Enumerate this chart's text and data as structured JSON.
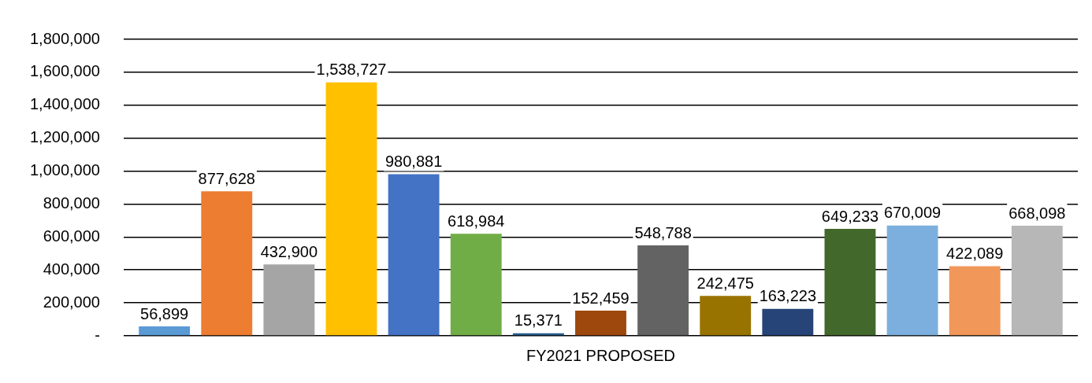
{
  "chart_data": {
    "type": "bar",
    "categories": [
      "FY2021 PROPOSED"
    ],
    "series": [
      {
        "color": "#5b9bd5",
        "values": [
          56899
        ],
        "value_labels": [
          "56,899"
        ]
      },
      {
        "color": "#ed7d31",
        "values": [
          877628
        ],
        "value_labels": [
          "877,628"
        ]
      },
      {
        "color": "#a5a5a5",
        "values": [
          432900
        ],
        "value_labels": [
          "432,900"
        ]
      },
      {
        "color": "#ffc000",
        "values": [
          1538727
        ],
        "value_labels": [
          "1,538,727"
        ]
      },
      {
        "color": "#4472c4",
        "values": [
          980881
        ],
        "value_labels": [
          "980,881"
        ]
      },
      {
        "color": "#70ad47",
        "values": [
          618984
        ],
        "value_labels": [
          "618,984"
        ]
      },
      {
        "color": "#255e91",
        "values": [
          15371
        ],
        "value_labels": [
          "15,371"
        ]
      },
      {
        "color": "#9e480e",
        "values": [
          152459
        ],
        "value_labels": [
          "152,459"
        ]
      },
      {
        "color": "#636363",
        "values": [
          548788
        ],
        "value_labels": [
          "548,788"
        ]
      },
      {
        "color": "#997300",
        "values": [
          242475
        ],
        "value_labels": [
          "242,475"
        ]
      },
      {
        "color": "#264478",
        "values": [
          163223
        ],
        "value_labels": [
          "163,223"
        ]
      },
      {
        "color": "#43682b",
        "values": [
          649233
        ],
        "value_labels": [
          "649,233"
        ]
      },
      {
        "color": "#7cafdd",
        "values": [
          670009
        ],
        "value_labels": [
          "670,009"
        ]
      },
      {
        "color": "#f1975a",
        "values": [
          422089
        ],
        "value_labels": [
          "422,089"
        ]
      },
      {
        "color": "#b7b7b7",
        "values": [
          668098
        ],
        "value_labels": [
          "668,098"
        ]
      }
    ],
    "ylim": [
      0,
      1800000
    ],
    "yticks": [
      {
        "value": 0,
        "label": "-"
      },
      {
        "value": 200000,
        "label": "200,000"
      },
      {
        "value": 400000,
        "label": "400,000"
      },
      {
        "value": 600000,
        "label": "600,000"
      },
      {
        "value": 800000,
        "label": "800,000"
      },
      {
        "value": 1000000,
        "label": "1,000,000"
      },
      {
        "value": 1200000,
        "label": "1,200,000"
      },
      {
        "value": 1400000,
        "label": "1,400,000"
      },
      {
        "value": 1600000,
        "label": "1,600,000"
      },
      {
        "value": 1800000,
        "label": "1,800,000"
      }
    ],
    "grid": "y",
    "legend": false
  }
}
